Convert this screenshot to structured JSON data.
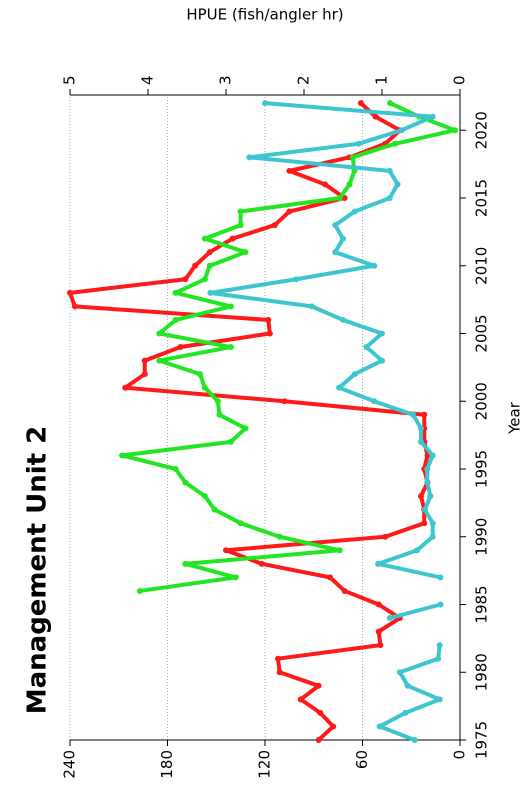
{
  "chart_data": {
    "type": "line",
    "title": "Management Unit 2",
    "x_label": "Year",
    "y2_label": "HPUE (fish/angler hr)",
    "x": [
      1975,
      1976,
      1977,
      1978,
      1979,
      1980,
      1981,
      1982,
      1983,
      1984,
      1985,
      1986,
      1987,
      1988,
      1989,
      1990,
      1991,
      1992,
      1993,
      1994,
      1995,
      1996,
      1997,
      1998,
      1999,
      2000,
      2001,
      2002,
      2003,
      2004,
      2005,
      2006,
      2007,
      2008,
      2009,
      2010,
      2011,
      2012,
      2013,
      2014,
      2015,
      2016,
      2017,
      2018,
      2019,
      2020,
      2021,
      2022
    ],
    "series": [
      {
        "color": "#ff1a1a",
        "values": [
          87,
          78,
          86,
          98,
          87,
          111,
          112,
          49,
          50,
          37,
          50,
          71,
          80,
          122,
          144,
          46,
          22,
          22,
          24,
          20,
          22,
          20,
          22,
          22,
          22,
          108,
          206,
          194,
          194,
          172,
          117,
          118,
          237,
          240,
          169,
          163,
          154,
          140,
          114,
          105,
          71,
          83,
          105,
          68,
          46,
          37,
          52,
          61
        ]
      },
      {
        "color": "#22e622",
        "values": [
          null,
          null,
          null,
          null,
          null,
          null,
          null,
          null,
          null,
          null,
          null,
          197,
          138,
          169,
          74,
          111,
          135,
          151,
          157,
          169,
          175,
          208,
          141,
          132,
          148,
          149,
          157,
          160,
          185,
          141,
          185,
          175,
          141,
          175,
          157,
          154,
          132,
          157,
          135,
          135,
          74,
          68,
          65,
          66,
          40,
          3,
          25,
          43
        ]
      },
      {
        "color": "#3ec6d0",
        "axis": "y2",
        "values": [
          0.58,
          1.03,
          0.7,
          0.26,
          0.67,
          0.77,
          0.28,
          0.26,
          null,
          0.9,
          0.25,
          null,
          0.25,
          1.05,
          0.55,
          0.35,
          0.35,
          0.45,
          0.38,
          0.42,
          0.42,
          0.35,
          0.5,
          0.5,
          0.6,
          1.1,
          1.55,
          1.35,
          1.0,
          1.2,
          1.0,
          1.5,
          1.9,
          3.2,
          2.1,
          1.1,
          1.6,
          1.5,
          1.6,
          1.35,
          0.9,
          0.8,
          0.9,
          2.7,
          1.3,
          0.75,
          0.35,
          2.5
        ]
      }
    ],
    "xlim": [
      1975,
      2022.6
    ],
    "xticks": [
      1975,
      1980,
      1985,
      1990,
      1995,
      2000,
      2005,
      2010,
      2015,
      2020
    ],
    "ylim": [
      0,
      240
    ],
    "yticks": [
      0,
      60,
      120,
      180,
      240
    ],
    "y2lim": [
      0,
      5
    ],
    "y2ticks": [
      0,
      1,
      2,
      3,
      4,
      5
    ],
    "grid": true
  }
}
